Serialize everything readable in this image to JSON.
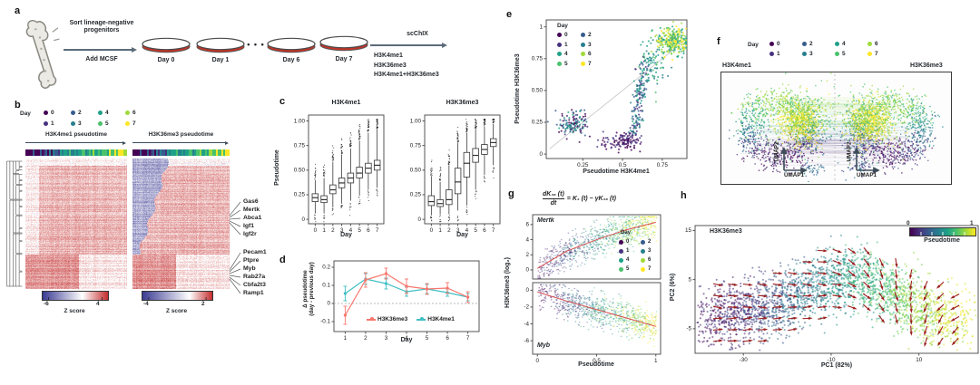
{
  "colors": {
    "day_palette": [
      "#440154",
      "#46327e",
      "#365c8d",
      "#277f8e",
      "#1fa187",
      "#4ac16d",
      "#9fda3a",
      "#fde725"
    ],
    "zscore_neg": "#3d3d95",
    "zscore_pos": "#c32a2a",
    "series_h3k36me3": "#f8766d",
    "series_h3k4me1": "#3fbfc4",
    "vector_arrow": "#9b1b1b",
    "trend_line": "#d94f4f",
    "schematic_arrow": "#5b6b7b"
  },
  "day_legend": {
    "title": "Day",
    "labels": [
      "0",
      "1",
      "2",
      "3",
      "4",
      "5",
      "6",
      "7"
    ]
  },
  "panel_a": {
    "label": "a",
    "sort_text_line1": "Sort lineage-negative",
    "sort_text_line2": "progenitors",
    "add_text": "Add MCSF",
    "dish_labels": [
      "Day 0",
      "Day 1",
      "Day 6",
      "Day 7"
    ],
    "ellipsis": "• • •",
    "scchix_label": "scChIX",
    "antibody_lines": [
      "H3K4me1",
      "H3K36me3",
      "H3K4me1+H3K36me3"
    ]
  },
  "panel_b": {
    "label": "b",
    "left_title": "H3K4me1 pseudotime",
    "right_title": "H3K36me3 pseudotime",
    "gene_labels_group1": [
      "Gas6",
      "Mertk",
      "Abca1",
      "Igf1",
      "Igf2r"
    ],
    "gene_labels_group2": [
      "Pecam1",
      "Ptpre",
      "Myb",
      "Rab27a",
      "Cbfa2t3",
      "Ramp1"
    ],
    "colorbar_left": {
      "min_label": "-6",
      "max_label": "4",
      "title": "Z score"
    },
    "colorbar_right": {
      "min_label": "-4",
      "max_label": "2",
      "title": "Z score"
    }
  },
  "panel_c": {
    "label": "c",
    "titles": [
      "H3K4me1",
      "H3K36me3"
    ],
    "ylabel": "Pseudotime",
    "xlabel": "Day"
  },
  "panel_d": {
    "label": "d",
    "ylabel_line1": "Δ pseudotime",
    "ylabel_line2": "(day - previous day)",
    "xlabel": "Day",
    "legend": [
      "H3K36me3",
      "H3K4me1"
    ]
  },
  "panel_e": {
    "label": "e",
    "xlabel": "Pseudotime H3K4me1",
    "ylabel": "Pseudotime H3K36me3"
  },
  "panel_f": {
    "label": "f",
    "left_title": "H3K4me1",
    "right_title": "H3K36me3",
    "umap1": "UMAP1",
    "umap2": "UMAP2"
  },
  "panel_g": {
    "label": "g",
    "equation_numerator": "dK₃₆ (t)",
    "equation_denominator": "dt",
    "equation_rhs": "= K₄ (t) − γK₃₆ (t)",
    "gene_top": "Mertk",
    "gene_bottom": "Myb",
    "ylabel": "H3K36me3 (log₂)",
    "xlabel": "Pseudotime"
  },
  "panel_h": {
    "label": "h",
    "inset_title": "H3K36me3",
    "xlabel": "PC1 (82%)",
    "ylabel": "PC2 (6%)",
    "colorbar_min": "0",
    "colorbar_max": "1",
    "colorbar_title": "Pseudotime"
  },
  "chart_data": [
    {
      "panel": "b",
      "type": "heatmap",
      "columns": [
        "H3K4me1 pseudotime",
        "H3K36me3 pseudotime"
      ],
      "genes": [
        "Gas6",
        "Mertk",
        "Abca1",
        "Igf1",
        "Igf2r",
        "Pecam1",
        "Ptpre",
        "Myb",
        "Rab27a",
        "Cbfa2t3",
        "Ramp1"
      ],
      "zscore_range_left": [
        -6,
        4
      ],
      "zscore_range_right": [
        -4,
        2
      ],
      "annotation": "cells ordered by pseudotime, colored by day 0-7 (viridis)"
    },
    {
      "panel": "c",
      "type": "box",
      "xlabel": "Day",
      "ylabel": "Pseudotime",
      "ylim": [
        0,
        1
      ],
      "yticks": [
        0,
        0.25,
        0.5,
        0.75,
        1
      ],
      "ytick_labels": [
        "0",
        "0.25",
        "0.50",
        "0.75",
        "1.00"
      ],
      "categories": [
        "0",
        "1",
        "2",
        "3",
        "4",
        "5",
        "6",
        "7"
      ],
      "subpanels": [
        {
          "title": "H3K4me1",
          "median": [
            0.22,
            0.2,
            0.3,
            0.37,
            0.42,
            0.47,
            0.52,
            0.55
          ],
          "q1": [
            0.18,
            0.17,
            0.26,
            0.32,
            0.37,
            0.42,
            0.47,
            0.5
          ],
          "q3": [
            0.26,
            0.24,
            0.35,
            0.42,
            0.47,
            0.53,
            0.57,
            0.6
          ],
          "whisker_low": [
            0.06,
            0.06,
            0.12,
            0.16,
            0.19,
            0.24,
            0.3,
            0.32
          ],
          "whisker_high": [
            0.4,
            0.42,
            0.58,
            0.66,
            0.72,
            0.8,
            0.88,
            0.92
          ]
        },
        {
          "title": "H3K36me3",
          "median": [
            0.18,
            0.16,
            0.2,
            0.38,
            0.57,
            0.65,
            0.71,
            0.78
          ],
          "q1": [
            0.14,
            0.13,
            0.15,
            0.26,
            0.43,
            0.58,
            0.66,
            0.74
          ],
          "q3": [
            0.24,
            0.2,
            0.3,
            0.52,
            0.68,
            0.72,
            0.76,
            0.82
          ],
          "whisker_low": [
            0.04,
            0.05,
            0.05,
            0.09,
            0.14,
            0.3,
            0.45,
            0.55
          ],
          "whisker_high": [
            0.44,
            0.38,
            0.55,
            0.78,
            0.88,
            0.92,
            0.94,
            0.97
          ]
        }
      ]
    },
    {
      "panel": "d",
      "type": "line",
      "x": [
        1,
        2,
        3,
        4,
        5,
        6,
        7
      ],
      "xlabel": "Day",
      "ylabel": "Δ pseudotime (day - previous day)",
      "ylim": [
        -0.15,
        0.23
      ],
      "yticks": [
        -0.1,
        0,
        0.1,
        0.2
      ],
      "ytick_labels": [
        "-0.1",
        "0",
        "0.1",
        "0.2"
      ],
      "zero_line": true,
      "series": [
        {
          "name": "H3K36me3",
          "values": [
            -0.065,
            0.13,
            0.165,
            0.095,
            0.08,
            0.085,
            0.035
          ],
          "errors": [
            0.05,
            0.04,
            0.03,
            0.04,
            0.03,
            0.03,
            0.03
          ]
        },
        {
          "name": "H3K4me1",
          "values": [
            0.055,
            0.135,
            0.11,
            0.065,
            0.08,
            0.06,
            0.035
          ],
          "errors": [
            0.04,
            0.03,
            0.03,
            0.025,
            0.025,
            0.02,
            0.02
          ]
        }
      ]
    },
    {
      "panel": "e",
      "type": "scatter",
      "xlabel": "Pseudotime H3K4me1",
      "ylabel": "Pseudotime H3K36me3",
      "xticks": [
        0.25,
        0.5,
        0.75
      ],
      "xtick_labels": [
        "0.25",
        "0.5",
        "0.75"
      ],
      "yticks": [
        0,
        0.25,
        0.5,
        0.75,
        1
      ],
      "ytick_labels": [
        "0",
        "0.25",
        "0.50",
        "0.75",
        "1"
      ],
      "identity_line": true,
      "clusters": [
        {
          "n": 130,
          "cx": 0.19,
          "cy": 0.245,
          "sx": 0.045,
          "sy": 0.05,
          "days": [
            0,
            1,
            2,
            3,
            4
          ]
        },
        {
          "n": 90,
          "cx": 0.53,
          "cy": 0.115,
          "sx": 0.045,
          "sy": 0.035,
          "days": [
            0,
            1
          ]
        },
        {
          "n": 40,
          "cx": 0.44,
          "cy": 0.09,
          "sx": 0.06,
          "sy": 0.03,
          "days": [
            0,
            1
          ]
        },
        {
          "n": 170,
          "band": true,
          "x0": 0.57,
          "x1": 0.65,
          "y0": 0.17,
          "y1": 0.76,
          "days": [
            1,
            2,
            3,
            4
          ]
        },
        {
          "n": 70,
          "cx": 0.7,
          "cy": 0.7,
          "sx": 0.05,
          "sy": 0.09,
          "days": [
            3,
            4,
            5
          ]
        },
        {
          "n": 280,
          "cx": 0.82,
          "cy": 0.885,
          "sx": 0.055,
          "sy": 0.055,
          "days": [
            4,
            5,
            6,
            7
          ]
        }
      ]
    },
    {
      "panel": "g",
      "type": "scatter",
      "xlabel": "Pseudotime",
      "ylabel": "H3K36me3 (log₂)",
      "xticks": [
        0,
        0.5,
        1
      ],
      "xtick_labels": [
        "0",
        "0.5",
        "1"
      ],
      "subpanels": [
        {
          "gene": "Mertk",
          "yticks": [
            0,
            2,
            4,
            6
          ],
          "trend_x": [
            0,
            0.25,
            0.5,
            0.75,
            1
          ],
          "trend_y": [
            0.2,
            2.5,
            4.0,
            5.3,
            6.3
          ],
          "noise_sd": 1.05
        },
        {
          "gene": "Myb",
          "yticks": [
            0,
            -2,
            -4,
            -6
          ],
          "trend_x": [
            0,
            0.25,
            0.5,
            0.75,
            1
          ],
          "trend_y": [
            -0.2,
            -1.3,
            -2.3,
            -3.3,
            -4.3
          ],
          "noise_sd": 0.95
        }
      ]
    },
    {
      "panel": "h",
      "type": "scatter-vector-field",
      "xlabel": "PC1 (82%)",
      "ylabel": "PC2 (6%)",
      "xticks": [
        -30,
        -10,
        10
      ],
      "xtick_labels": [
        "-30",
        "-10",
        "10"
      ],
      "yticks": [
        15,
        5,
        -5
      ],
      "ytick_labels": [
        "15",
        "5",
        "-5"
      ],
      "xlim": [
        -41,
        23.5
      ],
      "ylim": [
        -10,
        16
      ],
      "colorbar": {
        "title": "Pseudotime",
        "range": [
          0,
          1
        ]
      },
      "arc_x": [
        -38,
        -25,
        -15,
        -5,
        5,
        12,
        20
      ],
      "arc_y": [
        -3,
        -1,
        3,
        6,
        2,
        -2,
        -4
      ],
      "n_points": 2600
    },
    {
      "panel": "f",
      "type": "scatter",
      "subpanels": [
        "H3K4me1 UMAP",
        "H3K36me3 UMAP"
      ],
      "axes": [
        "UMAP1",
        "UMAP2"
      ],
      "link_lines": "cells linked between the two UMAP embeddings"
    }
  ]
}
